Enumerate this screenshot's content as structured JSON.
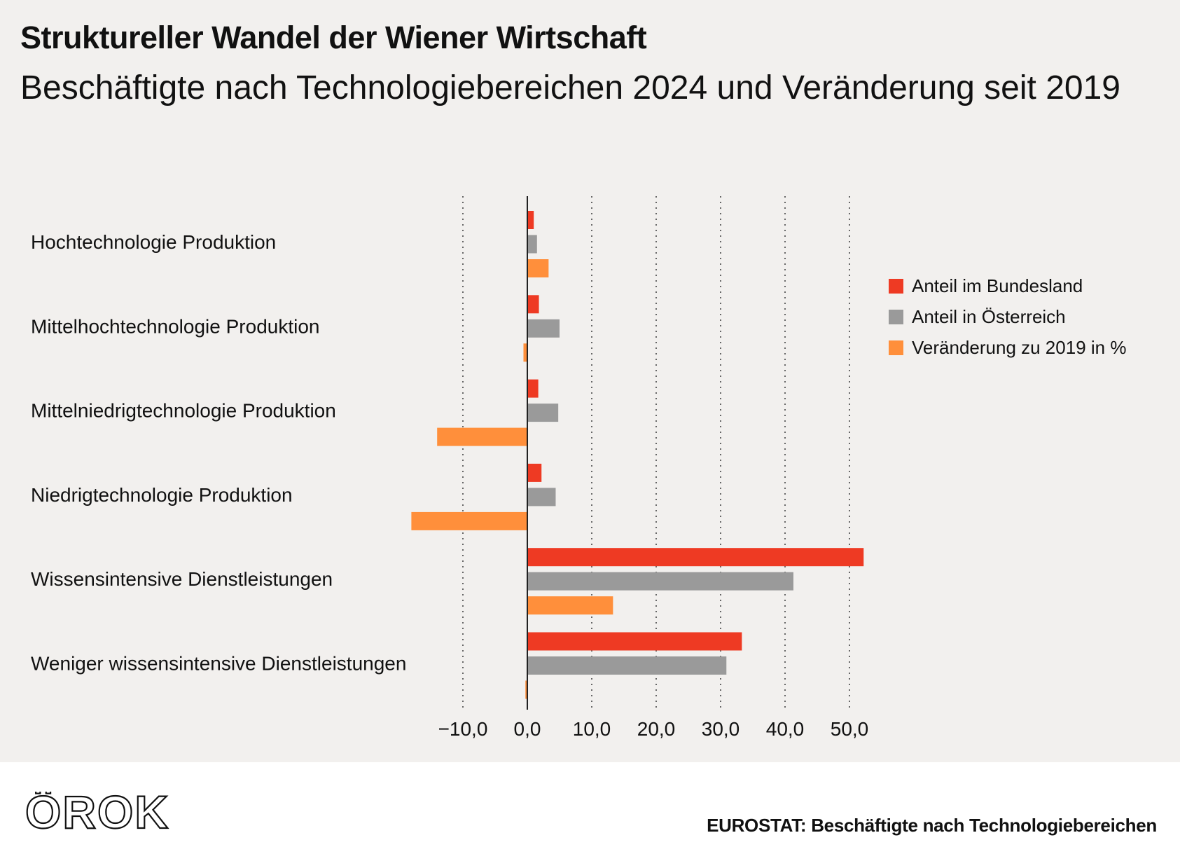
{
  "header": {
    "title": "Struktureller Wandel der Wiener Wirtschaft",
    "subtitle": "Beschäftigte nach Technologiebereichen 2024 und Veränderung seit 2019"
  },
  "chart_data": {
    "type": "bar",
    "orientation": "horizontal",
    "title": "Struktureller Wandel der Wiener Wirtschaft",
    "subtitle": "Beschäftigte nach Technologiebereichen 2024 und Veränderung seit 2019",
    "categories": [
      "Hochtechnologie Produktion",
      "Mittelhochtechnologie Produktion",
      "Mittelniedrigtechnologie Produktion",
      "Niedrigtechnologie Produktion",
      "Wissensintensive Dienstleistungen",
      "Weniger wissensintensive Dienstleistungen"
    ],
    "series": [
      {
        "name": "Anteil im Bundesland",
        "color": "#ee3a23",
        "values": [
          1.0,
          1.8,
          1.7,
          2.2,
          52.2,
          33.3
        ]
      },
      {
        "name": "Anteil in Österreich",
        "color": "#9a9a9a",
        "values": [
          1.5,
          5.0,
          4.8,
          4.4,
          41.3,
          30.9
        ]
      },
      {
        "name": "Veränderung zu 2019 in %",
        "color": "#ff8f3b",
        "values": [
          3.3,
          -0.6,
          -14.0,
          -18.0,
          13.3,
          -0.3
        ]
      }
    ],
    "xlim": [
      -17.5,
      55
    ],
    "xticks": [
      -10,
      0,
      10,
      20,
      30,
      40,
      50
    ],
    "tick_labels": [
      "−10,0",
      "0,0",
      "10,0",
      "20,0",
      "30,0",
      "40,0",
      "50,0"
    ],
    "grid": "vertical dotted",
    "legend": "right"
  },
  "footer": {
    "logo_text": "ÖROK",
    "source": "EUROSTAT: Beschäftigte nach Technologiebereichen"
  }
}
